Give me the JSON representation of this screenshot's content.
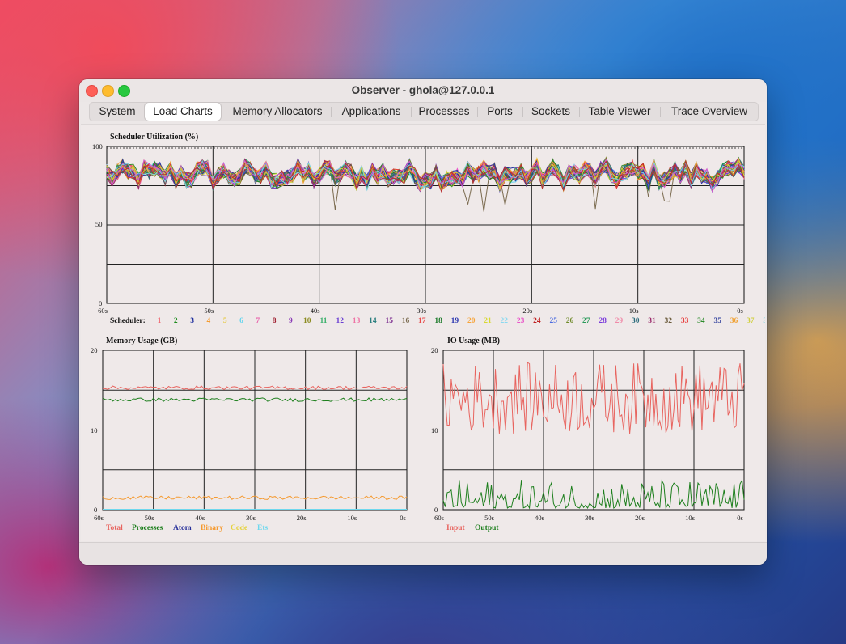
{
  "window": {
    "title": "Observer - ghola@127.0.0.1"
  },
  "tabs": [
    {
      "label": "System",
      "active": false
    },
    {
      "label": "Load Charts",
      "active": true
    },
    {
      "label": "Memory Allocators",
      "active": false
    },
    {
      "label": "Applications",
      "active": false
    },
    {
      "label": "Processes",
      "active": false
    },
    {
      "label": "Ports",
      "active": false
    },
    {
      "label": "Sockets",
      "active": false
    },
    {
      "label": "Table Viewer",
      "active": false
    },
    {
      "label": "Trace Overview",
      "active": false
    }
  ],
  "chart_data": [
    {
      "type": "line",
      "title": "Scheduler Utilization (%)",
      "ylim": [
        0,
        100
      ],
      "y_tick_labels": [
        "0",
        "50",
        "100"
      ],
      "x_tick_labels": [
        "60s",
        "50s",
        "40s",
        "30s",
        "20s",
        "10s",
        "0s"
      ],
      "legend_title": "Scheduler:",
      "series_count": 40,
      "series_names": [
        "1",
        "2",
        "3",
        "4",
        "5",
        "6",
        "7",
        "8",
        "9",
        "10",
        "11",
        "12",
        "13",
        "14",
        "15",
        "16",
        "17",
        "18",
        "19",
        "20",
        "21",
        "22",
        "23",
        "24",
        "25",
        "26",
        "27",
        "28",
        "29",
        "30",
        "31",
        "32",
        "33",
        "34",
        "35",
        "36",
        "37",
        "38",
        "39",
        "40"
      ],
      "series_colors": [
        "#f0606a",
        "#1e8c1e",
        "#1f2f9e",
        "#f59c32",
        "#e6c83a",
        "#5fd4ee",
        "#e85aa8",
        "#9e1b2c",
        "#8a3ab6",
        "#8b8b1f",
        "#3bb06b",
        "#6a3fd2",
        "#ef74a6",
        "#2b7f7f",
        "#7a2a8e",
        "#7a6a4e",
        "#e84a4a",
        "#1c7a2a",
        "#2a35b0",
        "#f7a43a",
        "#d8d830",
        "#8ad9f0",
        "#e957c9",
        "#c02020",
        "#4a6ae0",
        "#6f8a2a",
        "#2a9a5a",
        "#7a3adb",
        "#f08aa8",
        "#2a6a7a",
        "#9a2a6a",
        "#6a5a3a",
        "#e83a3a",
        "#2a8a2a",
        "#2a3a9a",
        "#f0a030",
        "#d0d040",
        "#7ad0e0",
        "#d05ad0",
        "#b83030"
      ],
      "grid": true,
      "summary": "All 40 schedulers fluctuate between roughly 60% and 95% utilization over the last 60 seconds"
    },
    {
      "type": "line",
      "title": "Memory Usage (GB)",
      "ylim": [
        0,
        20
      ],
      "y_tick_labels": [
        "0",
        "10",
        "20"
      ],
      "x_tick_labels": [
        "60s",
        "50s",
        "40s",
        "30s",
        "20s",
        "10s",
        "0s"
      ],
      "series": [
        {
          "name": "Total",
          "color": "#e8645f",
          "approx_value": 15.3
        },
        {
          "name": "Processes",
          "color": "#1d7f1d",
          "approx_value": 13.8
        },
        {
          "name": "Atom",
          "color": "#27309a",
          "approx_value": 0.05
        },
        {
          "name": "Binary",
          "color": "#f59a30",
          "approx_value": 1.5
        },
        {
          "name": "Code",
          "color": "#e6d23a",
          "approx_value": 0.05
        },
        {
          "name": "Ets",
          "color": "#6fd8ee",
          "approx_value": 0.05
        }
      ],
      "grid": true
    },
    {
      "type": "line",
      "title": "IO Usage (MB)",
      "ylim": [
        0,
        20
      ],
      "y_tick_labels": [
        "0",
        "10",
        "20"
      ],
      "x_tick_labels": [
        "60s",
        "50s",
        "40s",
        "30s",
        "20s",
        "10s",
        "0s"
      ],
      "series": [
        {
          "name": "Input",
          "color": "#e8645f",
          "range": [
            9.5,
            18.5
          ]
        },
        {
          "name": "Output",
          "color": "#1d7f1d",
          "range": [
            0.2,
            3.8
          ]
        }
      ],
      "grid": true
    }
  ]
}
